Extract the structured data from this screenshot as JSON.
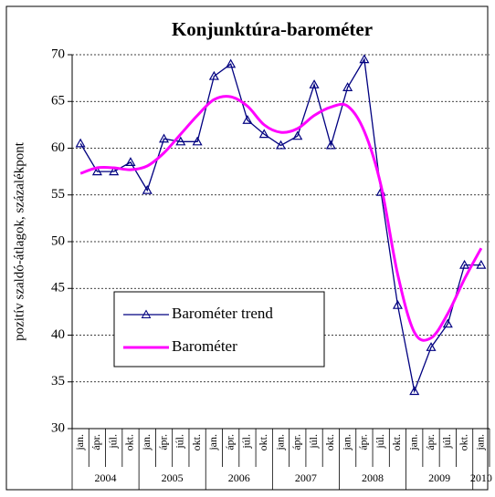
{
  "chart_data": {
    "type": "line",
    "title": "Konjunktúra-barométer",
    "y_label": "pozitív szaldó-átlagok, százalékpont",
    "categories": [
      "jan.",
      "ápr.",
      "júl.",
      "okt.",
      "jan.",
      "ápr.",
      "júl.",
      "okt.",
      "jan.",
      "ápr.",
      "júl.",
      "okt.",
      "jan.",
      "ápr.",
      "júl.",
      "okt.",
      "jan.",
      "ápr.",
      "júl.",
      "okt.",
      "jan.",
      "ápr.",
      "júl.",
      "okt.",
      "jan."
    ],
    "years": [
      "2004",
      "2005",
      "2006",
      "2007",
      "2008",
      "2009",
      "2010"
    ],
    "series": [
      {
        "name": "Barométer trend",
        "color": "#000080",
        "marker": "triangle",
        "values": [
          60.5,
          57.5,
          57.5,
          58.5,
          55.5,
          61,
          60.7,
          60.7,
          67.7,
          69,
          63,
          61.5,
          60.3,
          61.3,
          66.8,
          60.3,
          66.5,
          69.5,
          55.3,
          43.2,
          34,
          38.7,
          41.2,
          47.5,
          47.5
        ]
      },
      {
        "name": "Barométer",
        "color": "#ff00ff",
        "smooth": true,
        "values": [
          57.3,
          57.9,
          57.9,
          57.7,
          58.1,
          59.5,
          61.5,
          63.5,
          65.2,
          65.5,
          64.5,
          62.5,
          61.7,
          62.1,
          63.5,
          64.4,
          64.5,
          61.8,
          56,
          46.5,
          40.3,
          39.7,
          42.3,
          46,
          49.3
        ]
      }
    ],
    "ylim": [
      30,
      70
    ],
    "yticks": [
      30,
      35,
      40,
      45,
      50,
      55,
      60,
      65,
      70
    ],
    "grid": true
  }
}
